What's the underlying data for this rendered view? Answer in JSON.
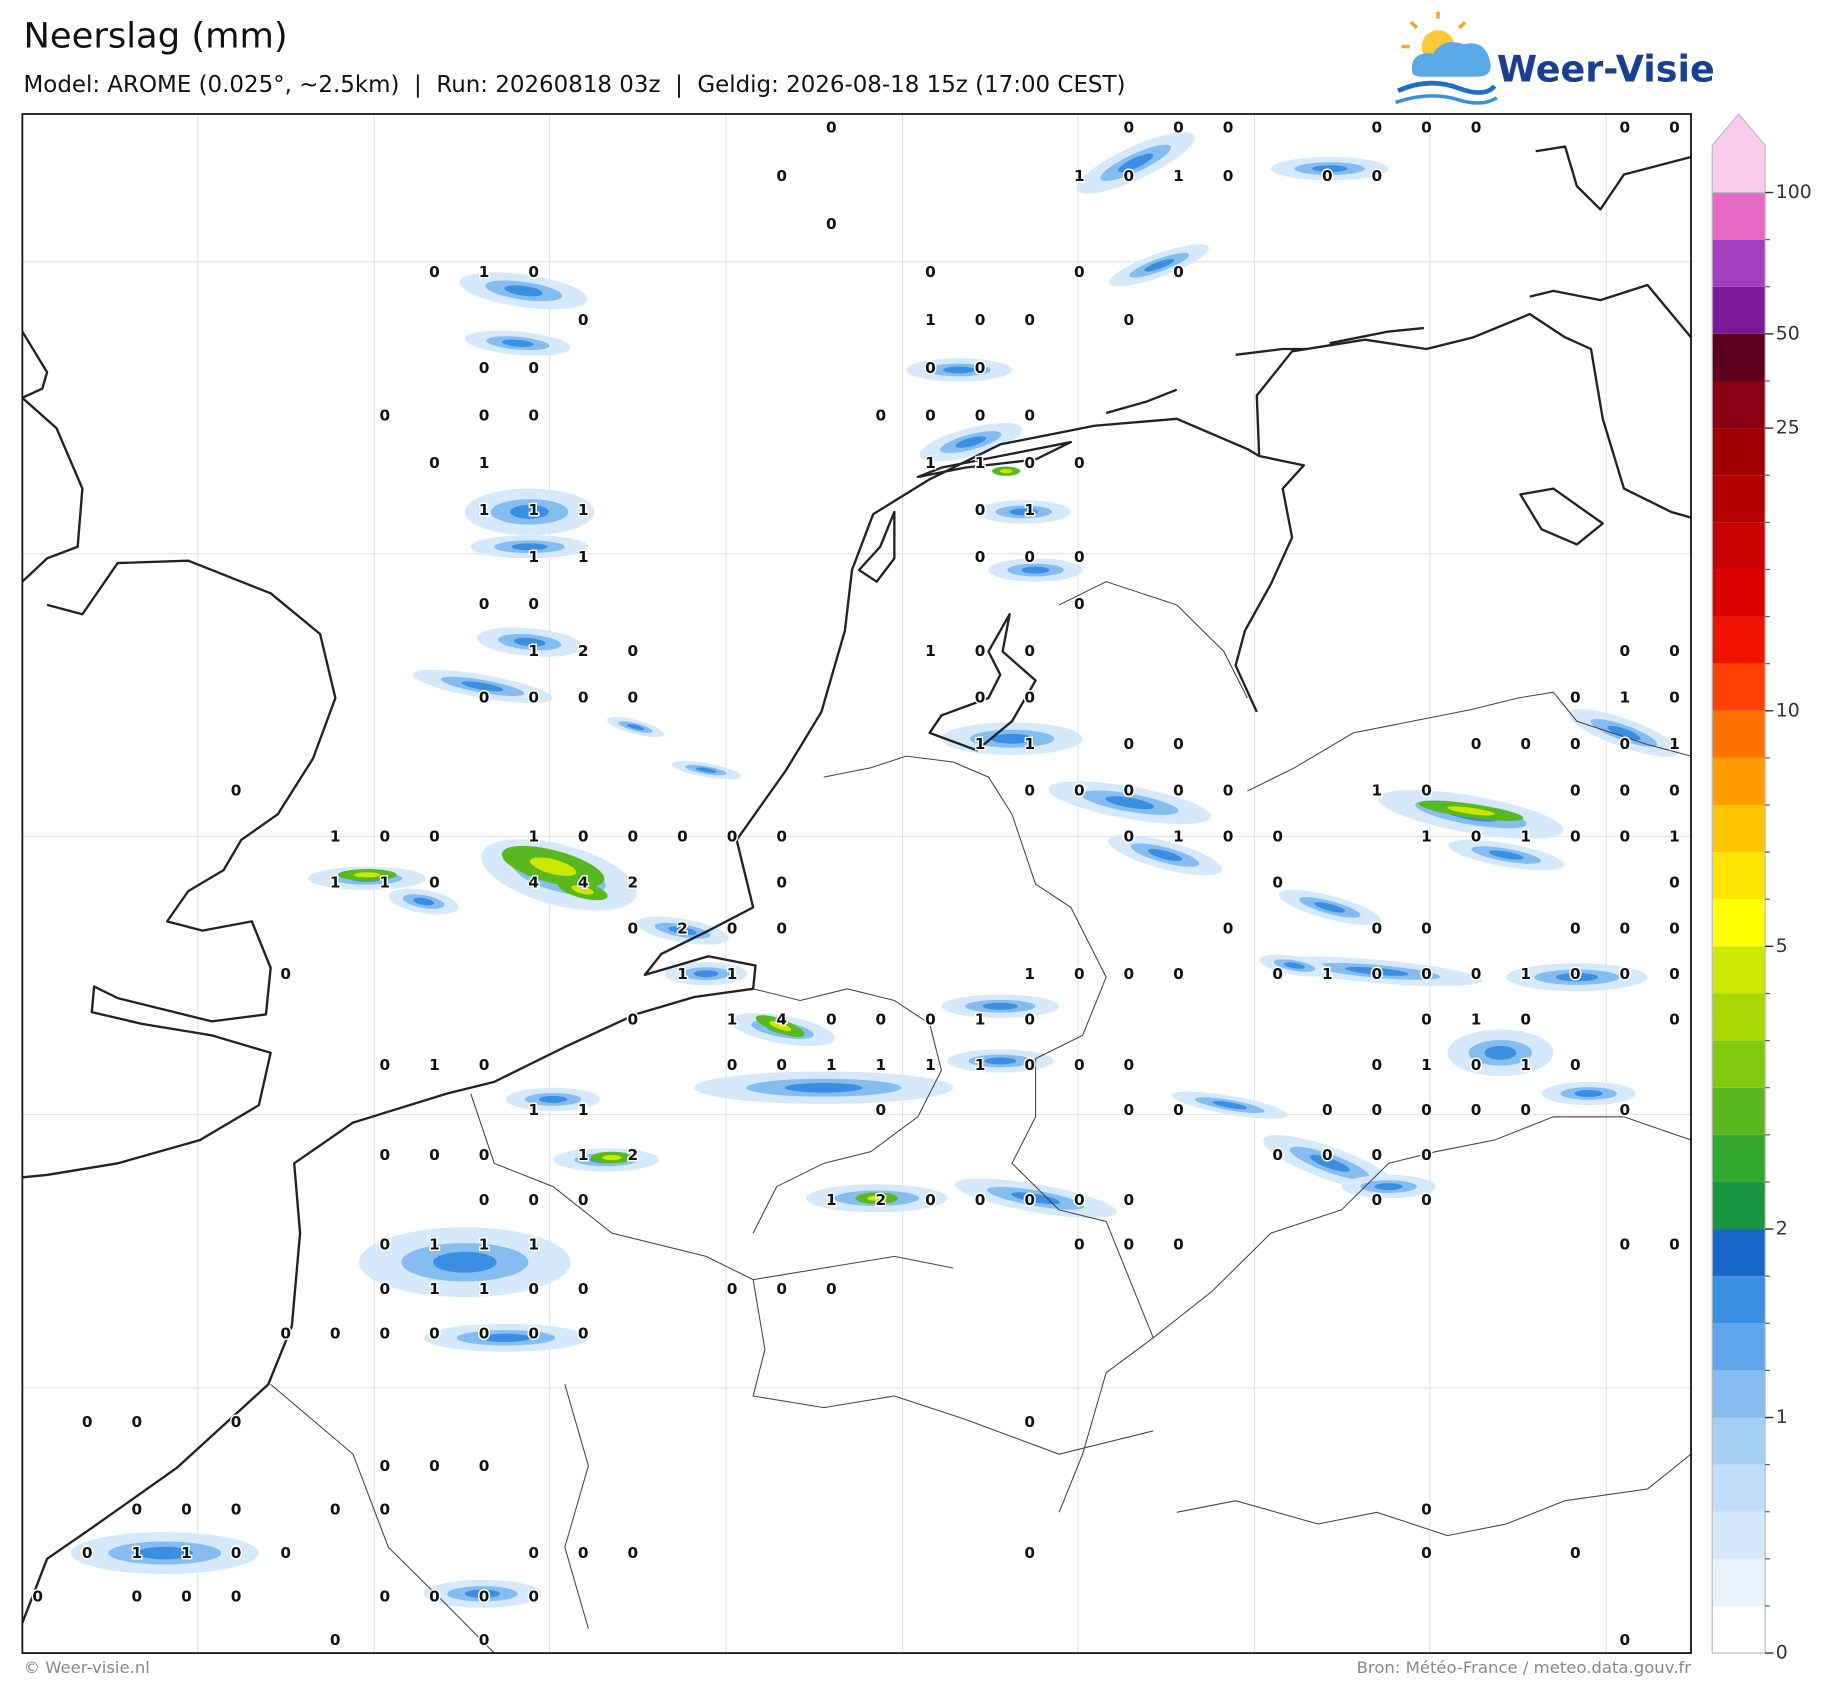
{
  "header": {
    "title": "Neerslag (mm)",
    "subtitle": "Model: AROME (0.025°, ~2.5km)  |  Run: 20260818 03z  |  Geldig: 2026-08-18 15z (17:00 CEST)"
  },
  "logo": {
    "text": "Weer-Visie"
  },
  "map": {
    "grid_values": [
      [
        null,
        null,
        null,
        null,
        null,
        null,
        null,
        null,
        null,
        null,
        null,
        null,
        null,
        null,
        null,
        null,
        0,
        null,
        null,
        null,
        null,
        null,
        0,
        0,
        0,
        null,
        null,
        0,
        0,
        0,
        null,
        null,
        0,
        0
      ],
      [
        null,
        null,
        null,
        null,
        null,
        null,
        null,
        null,
        null,
        null,
        null,
        null,
        null,
        null,
        null,
        0,
        null,
        null,
        null,
        null,
        null,
        1,
        0,
        1,
        0,
        null,
        0,
        0,
        null,
        null,
        null,
        null,
        null,
        null
      ],
      [
        null,
        null,
        null,
        null,
        null,
        null,
        null,
        null,
        null,
        null,
        null,
        null,
        null,
        null,
        null,
        null,
        0,
        null,
        null,
        null,
        null,
        null,
        null,
        null,
        null,
        null,
        null,
        null,
        null,
        null,
        null,
        null,
        null,
        null
      ],
      [
        null,
        null,
        null,
        null,
        null,
        null,
        null,
        null,
        0,
        1,
        0,
        null,
        null,
        null,
        null,
        null,
        null,
        null,
        0,
        null,
        null,
        0,
        null,
        0,
        null,
        null,
        null,
        null,
        null,
        null,
        null,
        null,
        null,
        null
      ],
      [
        null,
        null,
        null,
        null,
        null,
        null,
        null,
        null,
        null,
        null,
        null,
        0,
        null,
        null,
        null,
        null,
        null,
        null,
        1,
        0,
        0,
        null,
        0,
        null,
        null,
        null,
        null,
        null,
        null,
        null,
        null,
        null,
        null,
        null
      ],
      [
        null,
        null,
        null,
        null,
        null,
        null,
        null,
        null,
        null,
        0,
        0,
        null,
        null,
        null,
        null,
        null,
        null,
        null,
        0,
        0,
        null,
        null,
        null,
        null,
        null,
        null,
        null,
        null,
        null,
        null,
        null,
        null,
        null,
        null
      ],
      [
        null,
        null,
        null,
        null,
        null,
        null,
        null,
        0,
        null,
        0,
        0,
        null,
        null,
        null,
        null,
        null,
        null,
        0,
        0,
        0,
        0,
        null,
        null,
        null,
        null,
        null,
        null,
        null,
        null,
        null,
        null,
        null,
        null,
        null
      ],
      [
        null,
        null,
        null,
        null,
        null,
        null,
        null,
        null,
        0,
        1,
        null,
        null,
        null,
        null,
        null,
        null,
        null,
        null,
        1,
        1,
        0,
        0,
        null,
        null,
        null,
        null,
        null,
        null,
        null,
        null,
        null,
        null,
        null,
        null
      ],
      [
        null,
        null,
        null,
        null,
        null,
        null,
        null,
        null,
        null,
        1,
        1,
        1,
        null,
        null,
        null,
        null,
        null,
        null,
        null,
        0,
        1,
        null,
        null,
        null,
        null,
        null,
        null,
        null,
        null,
        null,
        null,
        null,
        null,
        null
      ],
      [
        null,
        null,
        null,
        null,
        null,
        null,
        null,
        null,
        null,
        null,
        1,
        1,
        null,
        null,
        null,
        null,
        null,
        null,
        null,
        0,
        0,
        0,
        null,
        null,
        null,
        null,
        null,
        null,
        null,
        null,
        null,
        null,
        null,
        null
      ],
      [
        null,
        null,
        null,
        null,
        null,
        null,
        null,
        null,
        null,
        0,
        0,
        null,
        null,
        null,
        null,
        null,
        null,
        null,
        null,
        null,
        null,
        0,
        null,
        null,
        null,
        null,
        null,
        null,
        null,
        null,
        null,
        null,
        null,
        null
      ],
      [
        null,
        null,
        null,
        null,
        null,
        null,
        null,
        null,
        null,
        null,
        1,
        2,
        0,
        null,
        null,
        null,
        null,
        null,
        1,
        0,
        0,
        null,
        null,
        null,
        null,
        null,
        null,
        null,
        null,
        null,
        null,
        null,
        0,
        0
      ],
      [
        null,
        null,
        null,
        null,
        null,
        null,
        null,
        null,
        null,
        0,
        0,
        0,
        0,
        null,
        null,
        null,
        null,
        null,
        null,
        0,
        0,
        null,
        null,
        null,
        null,
        null,
        null,
        null,
        null,
        null,
        null,
        0,
        1,
        0
      ],
      [
        null,
        null,
        null,
        null,
        null,
        null,
        null,
        null,
        null,
        null,
        null,
        null,
        null,
        null,
        null,
        null,
        null,
        null,
        null,
        1,
        1,
        null,
        0,
        0,
        null,
        null,
        null,
        null,
        null,
        0,
        0,
        0,
        0,
        1
      ],
      [
        null,
        null,
        null,
        null,
        0,
        null,
        null,
        null,
        null,
        null,
        null,
        null,
        null,
        null,
        null,
        null,
        null,
        null,
        null,
        null,
        0,
        0,
        0,
        0,
        0,
        null,
        null,
        1,
        0,
        null,
        null,
        0,
        0,
        0
      ],
      [
        null,
        null,
        null,
        null,
        null,
        null,
        1,
        0,
        0,
        null,
        1,
        0,
        0,
        0,
        0,
        0,
        null,
        null,
        null,
        null,
        null,
        null,
        0,
        1,
        0,
        0,
        null,
        null,
        1,
        0,
        1,
        0,
        0,
        1
      ],
      [
        null,
        null,
        null,
        null,
        null,
        null,
        1,
        1,
        0,
        null,
        4,
        4,
        2,
        null,
        null,
        0,
        null,
        null,
        null,
        null,
        null,
        null,
        null,
        null,
        null,
        0,
        null,
        null,
        null,
        null,
        null,
        null,
        null,
        0
      ],
      [
        null,
        null,
        null,
        null,
        null,
        null,
        null,
        null,
        null,
        null,
        null,
        null,
        0,
        2,
        0,
        0,
        null,
        null,
        null,
        null,
        null,
        null,
        null,
        null,
        0,
        null,
        null,
        0,
        0,
        null,
        null,
        0,
        0,
        0
      ],
      [
        null,
        null,
        null,
        null,
        null,
        0,
        null,
        null,
        null,
        null,
        null,
        null,
        null,
        1,
        1,
        null,
        null,
        null,
        null,
        null,
        1,
        0,
        0,
        0,
        null,
        0,
        1,
        0,
        0,
        0,
        1,
        0,
        0,
        0
      ],
      [
        null,
        null,
        null,
        null,
        null,
        null,
        null,
        null,
        null,
        null,
        null,
        null,
        0,
        null,
        1,
        4,
        0,
        0,
        0,
        1,
        0,
        null,
        null,
        null,
        null,
        null,
        null,
        null,
        0,
        1,
        0,
        null,
        null,
        0
      ],
      [
        null,
        null,
        null,
        null,
        null,
        null,
        null,
        0,
        1,
        0,
        null,
        null,
        null,
        null,
        0,
        0,
        1,
        1,
        1,
        1,
        0,
        0,
        0,
        null,
        null,
        null,
        null,
        0,
        1,
        0,
        1,
        0,
        null,
        null
      ],
      [
        null,
        null,
        null,
        null,
        null,
        null,
        null,
        null,
        null,
        null,
        1,
        1,
        null,
        null,
        null,
        null,
        null,
        0,
        null,
        null,
        null,
        null,
        0,
        0,
        null,
        null,
        0,
        0,
        0,
        0,
        0,
        null,
        0,
        null
      ],
      [
        null,
        null,
        null,
        null,
        null,
        null,
        null,
        0,
        0,
        0,
        null,
        1,
        2,
        null,
        null,
        null,
        null,
        null,
        null,
        null,
        null,
        null,
        null,
        null,
        null,
        0,
        0,
        0,
        0,
        null,
        null,
        null,
        null,
        null
      ],
      [
        null,
        null,
        null,
        null,
        null,
        null,
        null,
        null,
        null,
        0,
        0,
        0,
        null,
        null,
        null,
        null,
        1,
        2,
        0,
        0,
        0,
        0,
        0,
        null,
        null,
        null,
        null,
        0,
        0,
        null,
        null,
        null,
        null,
        null
      ],
      [
        null,
        null,
        null,
        null,
        null,
        null,
        null,
        0,
        1,
        1,
        1,
        null,
        null,
        null,
        null,
        null,
        null,
        null,
        null,
        null,
        null,
        0,
        0,
        0,
        null,
        null,
        null,
        null,
        null,
        null,
        null,
        null,
        0,
        0
      ],
      [
        null,
        null,
        null,
        null,
        null,
        null,
        null,
        0,
        1,
        1,
        0,
        0,
        null,
        null,
        0,
        0,
        0,
        null,
        null,
        null,
        null,
        null,
        null,
        null,
        null,
        null,
        null,
        null,
        null,
        null,
        null,
        null,
        null,
        null
      ],
      [
        null,
        null,
        null,
        null,
        null,
        0,
        0,
        0,
        0,
        0,
        0,
        0,
        null,
        null,
        null,
        null,
        null,
        null,
        null,
        null,
        null,
        null,
        null,
        null,
        null,
        null,
        null,
        null,
        null,
        null,
        null,
        null,
        null,
        null
      ],
      [
        null,
        null,
        null,
        null,
        null,
        null,
        null,
        null,
        null,
        null,
        null,
        null,
        null,
        null,
        null,
        null,
        null,
        null,
        null,
        null,
        null,
        null,
        null,
        null,
        null,
        null,
        null,
        null,
        null,
        null,
        null,
        null,
        null,
        null
      ],
      [
        null,
        0,
        0,
        null,
        0,
        null,
        null,
        null,
        null,
        null,
        null,
        null,
        null,
        null,
        null,
        null,
        null,
        null,
        null,
        null,
        0,
        null,
        null,
        null,
        null,
        null,
        null,
        null,
        null,
        null,
        null,
        null,
        null,
        null
      ],
      [
        null,
        null,
        null,
        null,
        null,
        null,
        null,
        0,
        0,
        0,
        null,
        null,
        null,
        null,
        null,
        null,
        null,
        null,
        null,
        null,
        null,
        null,
        null,
        null,
        null,
        null,
        null,
        null,
        null,
        null,
        null,
        null,
        null,
        null
      ],
      [
        null,
        null,
        0,
        0,
        0,
        null,
        0,
        0,
        null,
        null,
        null,
        null,
        null,
        null,
        null,
        null,
        null,
        null,
        null,
        null,
        null,
        null,
        null,
        null,
        null,
        null,
        null,
        null,
        0,
        null,
        null,
        null,
        null,
        null
      ],
      [
        null,
        0,
        1,
        1,
        0,
        0,
        null,
        null,
        null,
        null,
        0,
        0,
        0,
        null,
        null,
        null,
        null,
        null,
        null,
        null,
        0,
        null,
        null,
        null,
        null,
        null,
        null,
        null,
        0,
        null,
        null,
        0,
        null,
        null
      ],
      [
        0,
        null,
        0,
        0,
        0,
        null,
        null,
        0,
        0,
        0,
        0,
        null,
        null,
        null,
        null,
        null,
        null,
        null,
        null,
        null,
        null,
        null,
        null,
        null,
        null,
        null,
        null,
        null,
        null,
        null,
        null,
        null,
        null,
        null
      ],
      [
        null,
        null,
        null,
        null,
        null,
        null,
        0,
        null,
        null,
        0,
        null,
        null,
        null,
        null,
        null,
        null,
        null,
        null,
        null,
        null,
        null,
        null,
        null,
        null,
        null,
        null,
        null,
        null,
        null,
        null,
        null,
        null,
        0,
        null
      ]
    ]
  },
  "colorbar": {
    "levels": [
      0,
      0.1,
      0.2,
      0.3,
      0.5,
      1,
      1.2,
      1.4,
      1.6,
      2,
      2.5,
      3,
      3.5,
      4,
      4.5,
      5,
      6,
      7,
      8,
      9,
      10,
      12,
      14,
      16,
      18,
      20,
      25,
      35,
      50,
      60,
      75,
      100
    ],
    "colors": [
      "#ffffff",
      "#eaf3fd",
      "#d6e9fb",
      "#c0ddf9",
      "#a6cff6",
      "#86bdf0",
      "#5fa7ea",
      "#3a8fe2",
      "#1766cc",
      "#1a9640",
      "#33a82e",
      "#58b81e",
      "#80c80e",
      "#a8d804",
      "#cde800",
      "#ffff00",
      "#ffe400",
      "#ffc400",
      "#ff9c00",
      "#ff7400",
      "#ff4000",
      "#f01400",
      "#dc0000",
      "#c80000",
      "#b40000",
      "#a00000",
      "#880012",
      "#5c001e",
      "#7a1898",
      "#a43ec0",
      "#e868c8"
    ],
    "over_color": "#f9cbec",
    "ticks": [
      0,
      1,
      2,
      5,
      10,
      25,
      50,
      100
    ]
  },
  "footer": {
    "left": "© Weer-visie.nl",
    "right": "Bron: Météo-France / meteo.data.gouv.fr"
  }
}
